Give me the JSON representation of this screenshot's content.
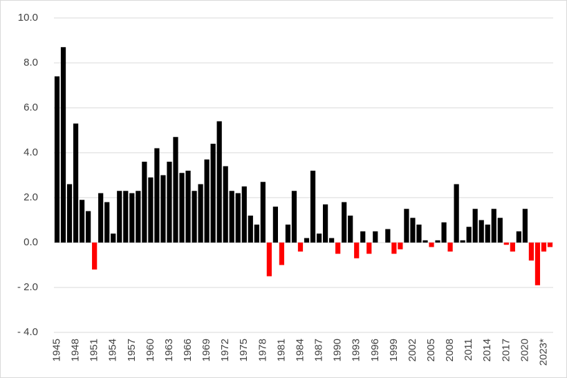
{
  "chart_data": {
    "type": "bar",
    "categories": [
      "1945",
      null,
      null,
      "1948",
      null,
      null,
      "1951",
      null,
      null,
      "1954",
      null,
      null,
      "1957",
      null,
      null,
      "1960",
      null,
      null,
      "1963",
      null,
      null,
      "1966",
      null,
      null,
      "1969",
      null,
      null,
      "1972",
      null,
      null,
      "1975",
      null,
      null,
      "1978",
      null,
      null,
      "1981",
      null,
      null,
      "1984",
      null,
      null,
      "1987",
      null,
      null,
      "1990",
      null,
      null,
      "1993",
      null,
      null,
      "1996",
      null,
      null,
      "1999",
      null,
      null,
      "2002",
      null,
      null,
      "2005",
      null,
      null,
      "2008",
      null,
      null,
      "2011",
      null,
      null,
      "2014",
      null,
      null,
      "2017",
      null,
      null,
      "2020",
      null,
      null,
      "2023*",
      null
    ],
    "values": [
      7.4,
      8.7,
      2.6,
      5.3,
      1.9,
      1.4,
      -1.2,
      2.2,
      1.8,
      0.4,
      2.3,
      2.3,
      2.2,
      2.3,
      3.6,
      2.9,
      4.2,
      3.0,
      3.6,
      4.7,
      3.1,
      3.2,
      2.3,
      2.6,
      3.7,
      4.4,
      5.4,
      3.4,
      2.3,
      2.2,
      2.5,
      1.2,
      0.8,
      2.7,
      -1.5,
      1.6,
      -1.0,
      0.8,
      2.3,
      -0.4,
      0.2,
      3.2,
      0.4,
      1.7,
      0.2,
      -0.5,
      1.8,
      1.2,
      -0.7,
      0.5,
      -0.5,
      0.5,
      0,
      0.6,
      -0.5,
      -0.3,
      1.5,
      1.1,
      0.8,
      0.1,
      -0.2,
      0.1,
      0.9,
      -0.4,
      2.6,
      0.1,
      0.7,
      1.5,
      1.0,
      0.8,
      1.5,
      1.1,
      -0.1,
      -0.4,
      0.5,
      1.5,
      -0.8,
      -1.9,
      -0.4,
      -0.2
    ],
    "color": "#000000",
    "negative_color": "#ff0000",
    "ylim": [
      -4,
      10
    ],
    "yticks": [
      {
        "value": -4,
        "label": "- 4.0"
      },
      {
        "value": -2,
        "label": "- 2.0"
      },
      {
        "value": 0,
        "label": "0.0"
      },
      {
        "value": 2,
        "label": "2.0"
      },
      {
        "value": 4,
        "label": "4.0"
      },
      {
        "value": 6,
        "label": "6.0"
      },
      {
        "value": 8,
        "label": "8.0"
      },
      {
        "value": 10,
        "label": "10.0"
      }
    ],
    "grid": true
  }
}
